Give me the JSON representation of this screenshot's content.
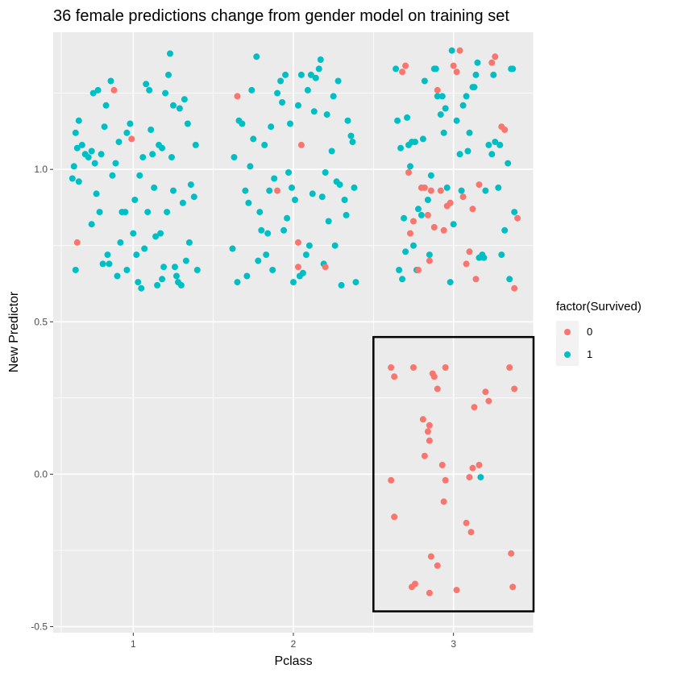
{
  "chart_data": {
    "type": "scatter",
    "title": "36 female predictions change from gender model on training set",
    "xlabel": "Pclass",
    "ylabel": "New Predictor",
    "xlim": [
      0.5,
      3.5
    ],
    "ylim": [
      -0.52,
      1.45
    ],
    "x_ticks": [
      1,
      2,
      3
    ],
    "x_tick_labels": [
      "1",
      "2",
      "3"
    ],
    "y_ticks": [
      -0.5,
      0.0,
      0.5,
      1.0
    ],
    "y_tick_labels": [
      "-0.5",
      "0.0",
      "0.5",
      "1.0"
    ],
    "legend": {
      "title": "factor(Survived)",
      "position": "right",
      "entries": [
        {
          "label": "0",
          "color": "#F8766D"
        },
        {
          "label": "1",
          "color": "#00BFC4"
        }
      ]
    },
    "colors": {
      "0": "#F8766D",
      "1": "#00BFC4"
    },
    "highlight_box": {
      "x": [
        2.5,
        3.5
      ],
      "y": [
        -0.45,
        0.45
      ],
      "color": "#000000"
    },
    "series": [
      {
        "name": "1",
        "color": "#00BFC4",
        "points": [
          [
            0.64,
            0.67
          ],
          [
            0.62,
            0.97
          ],
          [
            0.66,
            0.96
          ],
          [
            0.63,
            1.01
          ],
          [
            0.65,
            1.07
          ],
          [
            0.64,
            1.12
          ],
          [
            0.66,
            1.16
          ],
          [
            0.68,
            1.08
          ],
          [
            0.7,
            1.05
          ],
          [
            0.72,
            1.04
          ],
          [
            0.74,
            1.06
          ],
          [
            0.76,
            1.02
          ],
          [
            0.75,
            1.25
          ],
          [
            0.78,
            1.26
          ],
          [
            0.8,
            1.05
          ],
          [
            0.82,
            1.14
          ],
          [
            0.74,
            0.82
          ],
          [
            0.77,
            0.92
          ],
          [
            0.79,
            0.86
          ],
          [
            0.83,
            1.21
          ],
          [
            0.86,
            1.29
          ],
          [
            0.87,
            0.98
          ],
          [
            0.85,
            0.69
          ],
          [
            0.9,
            0.65
          ],
          [
            0.92,
            0.76
          ],
          [
            0.93,
            0.86
          ],
          [
            0.95,
            0.86
          ],
          [
            0.96,
            1.12
          ],
          [
            0.98,
            1.15
          ],
          [
            1.0,
            0.79
          ],
          [
            1.02,
            0.72
          ],
          [
            1.03,
            0.63
          ],
          [
            1.05,
            0.61
          ],
          [
            1.06,
            1.04
          ],
          [
            1.08,
            1.28
          ],
          [
            1.1,
            1.26
          ],
          [
            1.12,
            1.05
          ],
          [
            1.14,
            0.78
          ],
          [
            1.15,
            0.62
          ],
          [
            1.17,
            0.79
          ],
          [
            1.18,
            1.07
          ],
          [
            1.2,
            1.25
          ],
          [
            1.22,
            1.31
          ],
          [
            1.23,
            1.38
          ],
          [
            1.25,
            1.21
          ],
          [
            1.26,
            0.68
          ],
          [
            1.27,
            0.65
          ],
          [
            1.28,
            0.63
          ],
          [
            1.3,
            0.62
          ],
          [
            1.32,
            1.23
          ],
          [
            1.34,
            1.15
          ],
          [
            1.35,
            0.76
          ],
          [
            1.36,
            0.95
          ],
          [
            1.38,
            0.91
          ],
          [
            1.39,
            1.08
          ],
          [
            1.4,
            0.67
          ],
          [
            0.84,
            0.72
          ],
          [
            0.89,
            1.02
          ],
          [
            0.91,
            1.09
          ],
          [
            0.96,
            0.67
          ],
          [
            1.01,
            0.9
          ],
          [
            1.04,
            0.98
          ],
          [
            1.09,
            0.86
          ],
          [
            1.11,
            1.13
          ],
          [
            1.13,
            0.94
          ],
          [
            1.16,
            1.08
          ],
          [
            1.19,
            0.68
          ],
          [
            1.21,
            0.86
          ],
          [
            1.24,
            1.04
          ],
          [
            1.29,
            1.2
          ],
          [
            1.31,
            0.89
          ],
          [
            1.33,
            0.7
          ],
          [
            1.07,
            0.74
          ],
          [
            0.81,
            0.69
          ],
          [
            1.25,
            0.93
          ],
          [
            1.18,
            0.64
          ],
          [
            1.63,
            1.04
          ],
          [
            1.66,
            1.16
          ],
          [
            1.68,
            1.15
          ],
          [
            1.7,
            0.93
          ],
          [
            1.72,
            0.89
          ],
          [
            1.73,
            1.01
          ],
          [
            1.75,
            1.1
          ],
          [
            1.77,
            1.37
          ],
          [
            1.79,
            0.86
          ],
          [
            1.8,
            0.8
          ],
          [
            1.82,
            1.08
          ],
          [
            1.84,
            0.79
          ],
          [
            1.86,
            1.14
          ],
          [
            1.88,
            0.97
          ],
          [
            1.9,
            1.25
          ],
          [
            1.92,
            1.29
          ],
          [
            1.93,
            1.22
          ],
          [
            1.95,
            1.31
          ],
          [
            1.97,
            0.99
          ],
          [
            1.99,
            0.94
          ],
          [
            2.01,
            0.9
          ],
          [
            2.03,
            1.21
          ],
          [
            2.05,
            1.31
          ],
          [
            2.06,
            0.66
          ],
          [
            2.08,
            0.72
          ],
          [
            2.1,
            0.75
          ],
          [
            2.12,
            0.92
          ],
          [
            2.14,
            1.3
          ],
          [
            2.16,
            1.33
          ],
          [
            2.18,
            0.91
          ],
          [
            2.2,
            0.99
          ],
          [
            2.22,
            0.83
          ],
          [
            2.24,
            1.06
          ],
          [
            2.26,
            0.75
          ],
          [
            2.28,
            1.29
          ],
          [
            2.3,
            0.62
          ],
          [
            2.32,
            0.9
          ],
          [
            2.34,
            1.16
          ],
          [
            2.36,
            1.11
          ],
          [
            2.38,
            0.94
          ],
          [
            2.39,
            0.63
          ],
          [
            1.62,
            0.74
          ],
          [
            1.65,
            0.63
          ],
          [
            1.71,
            0.65
          ],
          [
            1.78,
            0.7
          ],
          [
            1.83,
            0.72
          ],
          [
            1.87,
            0.67
          ],
          [
            1.94,
            0.8
          ],
          [
            2.0,
            0.63
          ],
          [
            2.04,
            0.65
          ],
          [
            2.09,
            1.26
          ],
          [
            2.13,
            1.19
          ],
          [
            2.17,
            1.36
          ],
          [
            2.21,
            1.18
          ],
          [
            2.25,
            1.24
          ],
          [
            2.29,
            0.95
          ],
          [
            2.33,
            0.85
          ],
          [
            2.37,
            1.09
          ],
          [
            1.74,
            1.26
          ],
          [
            1.98,
            1.15
          ],
          [
            2.11,
            1.31
          ],
          [
            2.27,
            0.96
          ],
          [
            1.85,
            0.93
          ],
          [
            1.96,
            0.84
          ],
          [
            2.19,
            0.69
          ],
          [
            2.64,
            1.33
          ],
          [
            2.66,
            0.67
          ],
          [
            2.68,
            0.64
          ],
          [
            2.69,
            0.84
          ],
          [
            2.71,
            1.17
          ],
          [
            2.72,
            1.08
          ],
          [
            2.73,
            1.01
          ],
          [
            2.74,
            1.09
          ],
          [
            2.75,
            0.75
          ],
          [
            2.77,
            0.67
          ],
          [
            2.78,
            0.87
          ],
          [
            2.8,
            0.85
          ],
          [
            2.82,
            1.29
          ],
          [
            2.84,
            0.9
          ],
          [
            2.86,
            0.98
          ],
          [
            2.88,
            1.33
          ],
          [
            2.9,
            1.24
          ],
          [
            2.92,
            1.18
          ],
          [
            2.94,
            1.12
          ],
          [
            2.96,
            0.94
          ],
          [
            2.98,
            0.63
          ],
          [
            3.0,
            0.82
          ],
          [
            3.02,
            1.16
          ],
          [
            3.04,
            1.05
          ],
          [
            3.06,
            1.21
          ],
          [
            3.08,
            1.24
          ],
          [
            3.1,
            1.12
          ],
          [
            3.12,
            1.27
          ],
          [
            3.14,
            1.31
          ],
          [
            3.16,
            0.71
          ],
          [
            3.18,
            0.72
          ],
          [
            3.2,
            0.93
          ],
          [
            3.22,
            1.08
          ],
          [
            3.24,
            1.05
          ],
          [
            3.26,
            1.09
          ],
          [
            3.28,
            0.94
          ],
          [
            3.3,
            0.72
          ],
          [
            3.32,
            0.8
          ],
          [
            3.34,
            1.02
          ],
          [
            3.36,
            1.33
          ],
          [
            3.38,
            0.86
          ],
          [
            2.67,
            1.07
          ],
          [
            2.76,
            1.09
          ],
          [
            2.85,
            0.72
          ],
          [
            2.95,
            1.2
          ],
          [
            3.05,
            0.93
          ],
          [
            3.15,
            1.35
          ],
          [
            3.25,
            1.31
          ],
          [
            3.35,
            0.64
          ],
          [
            2.7,
            0.73
          ],
          [
            2.81,
            1.1
          ],
          [
            2.89,
            1.33
          ],
          [
            2.99,
            1.39
          ],
          [
            3.09,
            1.06
          ],
          [
            3.19,
            0.71
          ],
          [
            3.29,
            1.08
          ],
          [
            3.37,
            1.33
          ],
          [
            2.65,
            1.16
          ],
          [
            3.13,
            1.27
          ],
          [
            2.93,
            1.24
          ],
          [
            3.17,
            -0.01
          ]
        ]
      },
      {
        "name": "0",
        "color": "#F8766D",
        "points": [
          [
            0.65,
            0.76
          ],
          [
            0.88,
            1.26
          ],
          [
            0.99,
            1.1
          ],
          [
            1.65,
            1.24
          ],
          [
            1.9,
            0.93
          ],
          [
            2.05,
            1.08
          ],
          [
            2.03,
            0.76
          ],
          [
            2.2,
            0.68
          ],
          [
            2.03,
            0.68
          ],
          [
            2.68,
            1.32
          ],
          [
            2.7,
            1.34
          ],
          [
            2.72,
            0.99
          ],
          [
            2.73,
            0.79
          ],
          [
            2.75,
            0.83
          ],
          [
            2.78,
            0.67
          ],
          [
            2.8,
            0.94
          ],
          [
            2.82,
            0.94
          ],
          [
            2.84,
            0.85
          ],
          [
            2.86,
            0.93
          ],
          [
            2.88,
            0.81
          ],
          [
            2.9,
            1.26
          ],
          [
            2.92,
            0.93
          ],
          [
            2.94,
            0.8
          ],
          [
            2.96,
            0.88
          ],
          [
            2.98,
            0.89
          ],
          [
            3.0,
            1.34
          ],
          [
            3.02,
            1.32
          ],
          [
            3.04,
            1.39
          ],
          [
            3.06,
            0.91
          ],
          [
            3.08,
            0.69
          ],
          [
            3.1,
            0.73
          ],
          [
            3.12,
            0.87
          ],
          [
            3.14,
            0.64
          ],
          [
            3.16,
            0.95
          ],
          [
            3.24,
            1.35
          ],
          [
            3.26,
            1.37
          ],
          [
            3.3,
            1.14
          ],
          [
            3.32,
            1.13
          ],
          [
            3.4,
            0.84
          ],
          [
            3.38,
            0.61
          ],
          [
            2.85,
            0.7
          ],
          [
            2.61,
            0.35
          ],
          [
            2.63,
            0.32
          ],
          [
            2.75,
            0.35
          ],
          [
            2.87,
            0.33
          ],
          [
            2.88,
            0.32
          ],
          [
            2.95,
            0.35
          ],
          [
            2.9,
            0.28
          ],
          [
            2.81,
            0.18
          ],
          [
            2.85,
            0.16
          ],
          [
            2.84,
            0.14
          ],
          [
            2.85,
            0.11
          ],
          [
            2.82,
            0.06
          ],
          [
            3.2,
            0.27
          ],
          [
            3.22,
            0.24
          ],
          [
            3.13,
            0.22
          ],
          [
            3.35,
            0.35
          ],
          [
            3.38,
            0.28
          ],
          [
            2.93,
            0.03
          ],
          [
            3.12,
            0.02
          ],
          [
            3.16,
            0.03
          ],
          [
            3.1,
            -0.01
          ],
          [
            2.61,
            -0.02
          ],
          [
            2.95,
            -0.02
          ],
          [
            2.94,
            -0.09
          ],
          [
            2.63,
            -0.14
          ],
          [
            3.08,
            -0.16
          ],
          [
            3.11,
            -0.19
          ],
          [
            2.86,
            -0.27
          ],
          [
            3.36,
            -0.26
          ],
          [
            2.9,
            -0.3
          ],
          [
            2.74,
            -0.37
          ],
          [
            2.76,
            -0.36
          ],
          [
            2.85,
            -0.39
          ],
          [
            3.02,
            -0.38
          ],
          [
            3.37,
            -0.37
          ]
        ]
      }
    ]
  }
}
